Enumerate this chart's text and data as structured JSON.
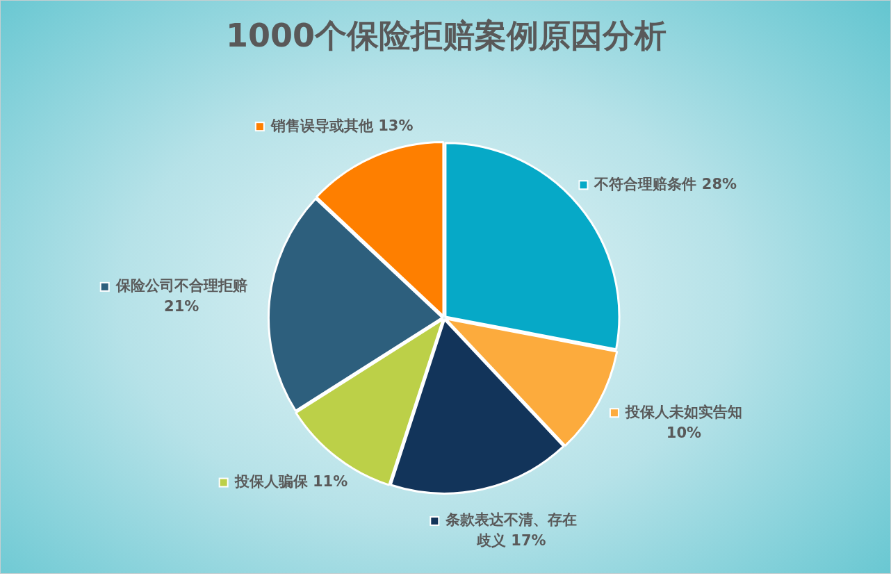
{
  "chart_data": {
    "type": "pie",
    "title": "1000个保险拒赔案例原因分析",
    "categories": [
      "不符合理赔条件",
      "投保人未如实告知",
      "条款表达不清、存在歧义",
      "投保人骗保",
      "保险公司不合理拒赔",
      "销售误导或其他"
    ],
    "values": [
      28,
      10,
      17,
      11,
      21,
      13
    ],
    "colors": [
      "#06a9c7",
      "#fcab3d",
      "#12345a",
      "#bcd048",
      "#2d5f7d",
      "#fe7f00"
    ],
    "value_labels": [
      "28%",
      "10%",
      "17%",
      "11%",
      "21%",
      "13%"
    ],
    "legend": "left"
  }
}
